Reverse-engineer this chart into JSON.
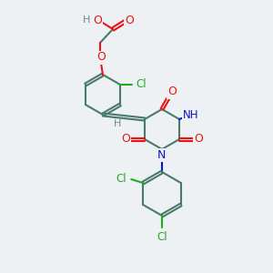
{
  "bg_color": "#eef1f3",
  "bond_color": "#4a7a6a",
  "atom_colors": {
    "O": "#ee1111",
    "N": "#1111cc",
    "Cl": "#22aa22",
    "H": "#6a8a8a",
    "C": "#4a7a6a"
  },
  "figsize": [
    3.0,
    3.0
  ],
  "dpi": 100
}
